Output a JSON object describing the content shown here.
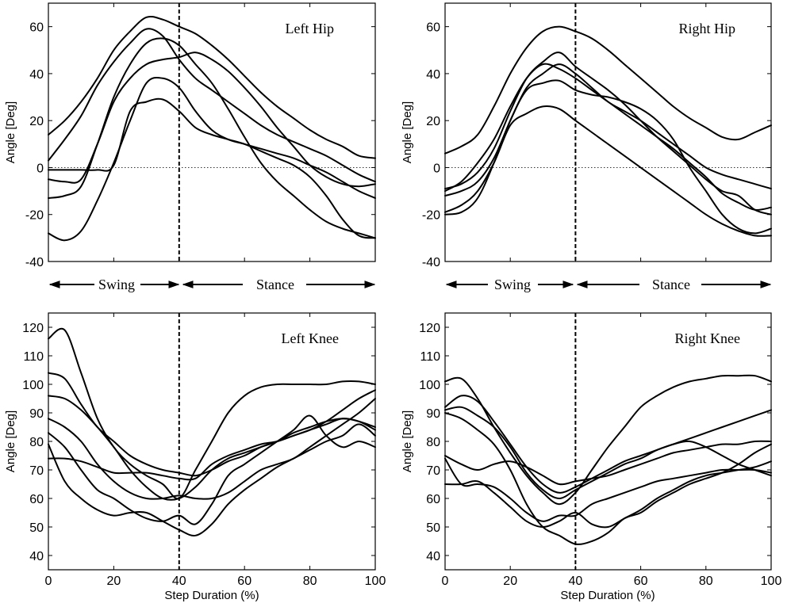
{
  "figure": {
    "xlabel": "Step Duration (%)",
    "phase_labels": {
      "swing": "Swing",
      "stance": "Stance"
    }
  },
  "colors": {
    "line": "#000000",
    "background": "#ffffff",
    "zero_line": "#333333"
  },
  "chart_data": [
    {
      "id": "left-hip",
      "type": "line",
      "title": "Left Hip",
      "ylabel": "Angle [Deg]",
      "xlabel": "",
      "xlim": [
        0,
        100
      ],
      "ylim": [
        -40,
        70
      ],
      "yticks": [
        -40,
        -20,
        0,
        20,
        40,
        60
      ],
      "xticks": [
        0,
        20,
        40,
        60,
        80,
        100
      ],
      "show_xtick_labels": false,
      "zero_line": true,
      "vline_x": 40,
      "x": [
        0,
        5,
        10,
        15,
        20,
        25,
        30,
        35,
        40,
        45,
        50,
        55,
        60,
        65,
        70,
        75,
        80,
        85,
        90,
        95,
        100
      ],
      "series": [
        {
          "name": "trial-1",
          "values": [
            14,
            20,
            28,
            38,
            50,
            58,
            64,
            63,
            60,
            57,
            52,
            46,
            39,
            32,
            26,
            21,
            16,
            12,
            9,
            5,
            4
          ]
        },
        {
          "name": "trial-2",
          "values": [
            3,
            12,
            22,
            35,
            45,
            53,
            59,
            56,
            46,
            38,
            33,
            28,
            23,
            18,
            14,
            11,
            8,
            5,
            1,
            -3,
            -6
          ]
        },
        {
          "name": "trial-3",
          "values": [
            -13,
            -12,
            -8,
            10,
            30,
            44,
            53,
            55,
            52,
            44,
            36,
            25,
            13,
            2,
            -6,
            -12,
            -18,
            -23,
            -26,
            -28,
            -30
          ]
        },
        {
          "name": "trial-4",
          "values": [
            -5,
            -6,
            -5,
            10,
            28,
            38,
            44,
            46,
            47,
            49,
            46,
            41,
            34,
            26,
            17,
            9,
            1,
            -4,
            -7,
            -8,
            -7
          ]
        },
        {
          "name": "trial-5",
          "values": [
            -28,
            -31,
            -27,
            -14,
            2,
            20,
            36,
            38,
            34,
            24,
            16,
            12,
            10,
            8,
            6,
            4,
            1,
            -2,
            -6,
            -10,
            -13
          ]
        },
        {
          "name": "trial-6",
          "values": [
            -1,
            -1,
            -1,
            -1,
            1,
            24,
            28,
            29,
            24,
            17,
            14,
            12,
            10,
            7,
            4,
            1,
            -4,
            -12,
            -22,
            -29,
            -30
          ]
        }
      ]
    },
    {
      "id": "right-hip",
      "type": "line",
      "title": "Right Hip",
      "ylabel": "Angle [Deg]",
      "xlabel": "",
      "xlim": [
        0,
        100
      ],
      "ylim": [
        -40,
        70
      ],
      "yticks": [
        -40,
        -20,
        0,
        20,
        40,
        60
      ],
      "xticks": [
        0,
        20,
        40,
        60,
        80,
        100
      ],
      "show_xtick_labels": false,
      "zero_line": true,
      "vline_x": 40,
      "x": [
        0,
        5,
        10,
        15,
        20,
        25,
        30,
        35,
        40,
        45,
        50,
        55,
        60,
        65,
        70,
        75,
        80,
        85,
        90,
        95,
        100
      ],
      "series": [
        {
          "name": "trial-1",
          "values": [
            6,
            9,
            14,
            26,
            40,
            51,
            58,
            60,
            58,
            55,
            50,
            44,
            38,
            32,
            26,
            21,
            17,
            13,
            12,
            15,
            18
          ]
        },
        {
          "name": "trial-2",
          "values": [
            -9,
            -7,
            -2,
            8,
            24,
            38,
            45,
            49,
            43,
            38,
            33,
            27,
            20,
            13,
            7,
            1,
            -5,
            -10,
            -12,
            -18,
            -20
          ]
        },
        {
          "name": "trial-3",
          "values": [
            -10,
            -6,
            2,
            12,
            26,
            38,
            44,
            42,
            38,
            33,
            28,
            23,
            18,
            13,
            8,
            2,
            -4,
            -11,
            -15,
            -18,
            -17
          ]
        },
        {
          "name": "trial-4",
          "values": [
            -12,
            -10,
            -6,
            4,
            20,
            34,
            40,
            44,
            40,
            34,
            28,
            24,
            20,
            15,
            10,
            5,
            0,
            -3,
            -5,
            -7,
            -9
          ]
        },
        {
          "name": "trial-5",
          "values": [
            -20,
            -19,
            -13,
            2,
            20,
            33,
            36,
            37,
            33,
            31,
            30,
            28,
            25,
            20,
            12,
            0,
            -10,
            -20,
            -26,
            -28,
            -26
          ]
        },
        {
          "name": "trial-6",
          "values": [
            -19,
            -16,
            -10,
            2,
            18,
            23,
            26,
            25,
            20,
            15,
            10,
            5,
            0,
            -5,
            -10,
            -15,
            -20,
            -24,
            -27,
            -29,
            -29
          ]
        }
      ]
    },
    {
      "id": "left-knee",
      "type": "line",
      "title": "Left Knee",
      "ylabel": "Angle [Deg]",
      "xlabel": "Step Duration (%)",
      "xlim": [
        0,
        100
      ],
      "ylim": [
        35,
        125
      ],
      "yticks": [
        40,
        50,
        60,
        70,
        80,
        90,
        100,
        110,
        120
      ],
      "xticks": [
        0,
        20,
        40,
        60,
        80,
        100
      ],
      "show_xtick_labels": true,
      "zero_line": false,
      "vline_x": 40,
      "x": [
        0,
        5,
        10,
        15,
        20,
        25,
        30,
        35,
        40,
        45,
        50,
        55,
        60,
        65,
        70,
        75,
        80,
        85,
        90,
        95,
        100
      ],
      "series": [
        {
          "name": "trial-1",
          "values": [
            116,
            119,
            104,
            88,
            78,
            72,
            68,
            65,
            60,
            70,
            80,
            90,
            96,
            99,
            100,
            100,
            100,
            100,
            101,
            101,
            100
          ]
        },
        {
          "name": "trial-2",
          "values": [
            104,
            102,
            93,
            85,
            80,
            75,
            72,
            70,
            69,
            68,
            70,
            73,
            75,
            78,
            80,
            82,
            84,
            87,
            91,
            95,
            98
          ]
        },
        {
          "name": "trial-3",
          "values": [
            96,
            95,
            91,
            85,
            78,
            70,
            64,
            60,
            60,
            64,
            70,
            74,
            76,
            78,
            80,
            83,
            85,
            87,
            88,
            87,
            84
          ]
        },
        {
          "name": "trial-4",
          "values": [
            88,
            85,
            80,
            72,
            66,
            62,
            60,
            60,
            61,
            60,
            60,
            62,
            66,
            70,
            72,
            74,
            78,
            82,
            86,
            90,
            95
          ]
        },
        {
          "name": "trial-5",
          "values": [
            83,
            78,
            70,
            63,
            60,
            56,
            53,
            52,
            54,
            51,
            58,
            68,
            72,
            76,
            80,
            84,
            89,
            82,
            78,
            80,
            78
          ]
        },
        {
          "name": "trial-6",
          "values": [
            74,
            74,
            73,
            71,
            69,
            69,
            69,
            68,
            67,
            67,
            72,
            75,
            77,
            79,
            80,
            82,
            84,
            86,
            88,
            87,
            85
          ]
        },
        {
          "name": "trial-7",
          "values": [
            79,
            66,
            60,
            56,
            54,
            55,
            55,
            52,
            49,
            47,
            51,
            58,
            63,
            67,
            71,
            74,
            77,
            80,
            82,
            86,
            82
          ]
        }
      ]
    },
    {
      "id": "right-knee",
      "type": "line",
      "title": "Right Knee",
      "ylabel": "Angle [Deg]",
      "xlabel": "Step Duration (%)",
      "xlim": [
        0,
        100
      ],
      "ylim": [
        35,
        125
      ],
      "yticks": [
        40,
        50,
        60,
        70,
        80,
        90,
        100,
        110,
        120
      ],
      "xticks": [
        0,
        20,
        40,
        60,
        80,
        100
      ],
      "show_xtick_labels": true,
      "zero_line": false,
      "vline_x": 40,
      "x": [
        0,
        5,
        10,
        15,
        20,
        25,
        30,
        35,
        40,
        45,
        50,
        55,
        60,
        65,
        70,
        75,
        80,
        85,
        90,
        95,
        100
      ],
      "series": [
        {
          "name": "trial-1",
          "values": [
            101,
            102,
            95,
            85,
            76,
            68,
            62,
            58,
            62,
            70,
            78,
            85,
            92,
            96,
            99,
            101,
            102,
            103,
            103,
            103,
            101
          ]
        },
        {
          "name": "trial-2",
          "values": [
            92,
            96,
            94,
            87,
            79,
            71,
            65,
            62,
            64,
            67,
            70,
            73,
            75,
            77,
            79,
            80,
            78,
            75,
            72,
            70,
            68
          ]
        },
        {
          "name": "trial-3",
          "values": [
            91,
            92,
            89,
            85,
            78,
            69,
            63,
            60,
            63,
            66,
            69,
            72,
            74,
            77,
            79,
            81,
            83,
            85,
            87,
            89,
            91
          ]
        },
        {
          "name": "trial-4",
          "values": [
            75,
            72,
            70,
            72,
            73,
            71,
            68,
            65,
            66,
            67,
            68,
            70,
            72,
            74,
            76,
            77,
            78,
            79,
            79,
            80,
            80
          ]
        },
        {
          "name": "trial-5",
          "values": [
            74,
            65,
            65,
            64,
            60,
            55,
            52,
            54,
            54,
            58,
            60,
            62,
            64,
            66,
            67,
            68,
            69,
            70,
            70,
            70,
            69
          ]
        },
        {
          "name": "trial-6",
          "values": [
            65,
            65,
            66,
            62,
            57,
            52,
            50,
            52,
            55,
            51,
            50,
            53,
            56,
            60,
            63,
            66,
            68,
            69,
            70,
            71,
            73
          ]
        },
        {
          "name": "trial-7",
          "values": [
            90,
            88,
            84,
            79,
            70,
            58,
            50,
            47,
            44,
            45,
            48,
            53,
            55,
            59,
            62,
            65,
            67,
            69,
            72,
            76,
            79
          ]
        }
      ]
    }
  ]
}
